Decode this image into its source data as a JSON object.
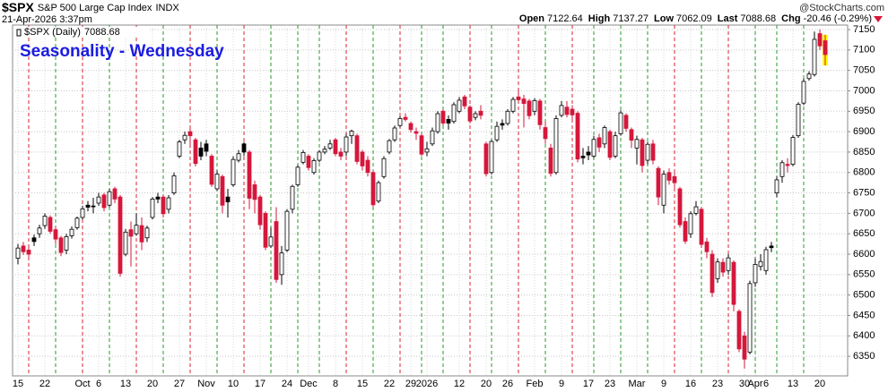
{
  "header": {
    "symbol": "$SPX",
    "name": "S&P 500 Large Cap Index",
    "exchange": "INDX",
    "timestamp": "21-Apr-2026 3:37pm",
    "source": "@StockCharts.com",
    "quote": [
      {
        "label": "Open",
        "value": 7122.64
      },
      {
        "label": "High",
        "value": 7137.27
      },
      {
        "label": "Low",
        "value": 7062.09
      },
      {
        "label": "Last",
        "value": 7088.68
      }
    ],
    "change_label": "Chg",
    "change": "-20.46 (-0.29%)"
  },
  "chart_data": {
    "type": "candlestick",
    "title": "Seasonality - Wednesday",
    "legend": "$SPX (Daily)",
    "legend_value": 7088.68,
    "categories": [
      "15",
      null,
      null,
      null,
      null,
      "22",
      null,
      null,
      null,
      null,
      null,
      null,
      "Oct",
      null,
      null,
      "6",
      null,
      null,
      null,
      null,
      "13",
      null,
      null,
      null,
      null,
      "20",
      null,
      null,
      null,
      null,
      "27",
      null,
      null,
      null,
      null,
      "Nov",
      null,
      null,
      null,
      null,
      "10",
      null,
      null,
      null,
      null,
      "17",
      null,
      null,
      null,
      null,
      "24",
      null,
      null,
      null,
      "Dec",
      null,
      null,
      null,
      null,
      "8",
      null,
      null,
      null,
      null,
      "15",
      null,
      null,
      null,
      null,
      "22",
      null,
      null,
      null,
      "29",
      null,
      null,
      "2026",
      null,
      null,
      null,
      null,
      null,
      "12",
      null,
      null,
      null,
      null,
      "20",
      null,
      null,
      null,
      "26",
      null,
      null,
      null,
      null,
      "Feb",
      null,
      null,
      null,
      null,
      "9",
      null,
      null,
      null,
      null,
      "17",
      null,
      null,
      null,
      "23",
      null,
      null,
      null,
      null,
      "Mar",
      null,
      null,
      null,
      null,
      "9",
      null,
      null,
      null,
      null,
      "16",
      null,
      null,
      null,
      null,
      "23",
      null,
      null,
      null,
      null,
      "30",
      null,
      "Apr",
      null,
      "6",
      null,
      null,
      null,
      null,
      "13",
      null,
      null,
      null,
      null,
      "20",
      null
    ],
    "open": [
      6590,
      6620,
      6610,
      6640,
      6650,
      6670,
      6690,
      6660,
      6640,
      6610,
      6645,
      6665,
      6690,
      6720,
      6718,
      6725,
      6745,
      6720,
      6760,
      6740,
      6600,
      6660,
      6650,
      6670,
      6640,
      6690,
      6740,
      6740,
      6710,
      6750,
      6840,
      6880,
      6900,
      6880,
      6860,
      6870,
      6840,
      6760,
      6790,
      6740,
      6770,
      6830,
      6870,
      6850,
      6770,
      6740,
      6700,
      6620,
      6680,
      6550,
      6610,
      6710,
      6770,
      6825,
      6840,
      6800,
      6830,
      6850,
      6860,
      6880,
      6850,
      6850,
      6890,
      6890,
      6850,
      6830,
      6800,
      6730,
      6790,
      6850,
      6880,
      6915,
      6935,
      6920,
      6900,
      6890,
      6850,
      6870,
      6900,
      6950,
      6930,
      6925,
      6950,
      6985,
      6960,
      6935,
      6950,
      6870,
      6800,
      6880,
      6920,
      6920,
      6950,
      6985,
      6980,
      6975,
      6950,
      6975,
      6910,
      6860,
      6800,
      6940,
      6960,
      6955,
      6945,
      6840,
      6850,
      6840,
      6885,
      6870,
      6900,
      6840,
      6895,
      6940,
      6905,
      6860,
      6880,
      6830,
      6870,
      6810,
      6720,
      6800,
      6790,
      6760,
      6680,
      6650,
      6700,
      6710,
      6630,
      6600,
      6540,
      6580,
      6560,
      6580,
      6460,
      6400,
      6360,
      6530,
      6570,
      6560,
      6620,
      6750,
      6790,
      6820,
      6820,
      6890,
      6970,
      7030,
      7040,
      7140,
      7122.64
    ],
    "high": [
      6625,
      6630,
      6622,
      6648,
      6672,
      6700,
      6695,
      6668,
      6645,
      6650,
      6668,
      6692,
      6718,
      6730,
      6738,
      6750,
      6750,
      6760,
      6765,
      6745,
      6662,
      6680,
      6700,
      6690,
      6670,
      6740,
      6750,
      6745,
      6745,
      6800,
      6880,
      6900,
      6910,
      6885,
      6875,
      6880,
      6845,
      6805,
      6795,
      6760,
      6840,
      6855,
      6875,
      6855,
      6780,
      6745,
      6705,
      6665,
      6715,
      6620,
      6710,
      6770,
      6818,
      6855,
      6845,
      6835,
      6855,
      6865,
      6880,
      6885,
      6860,
      6895,
      6905,
      6895,
      6855,
      6840,
      6805,
      6780,
      6840,
      6882,
      6915,
      6938,
      6945,
      6925,
      6910,
      6895,
      6875,
      6910,
      6950,
      6955,
      6940,
      6972,
      6985,
      6990,
      6965,
      6950,
      6965,
      6875,
      6880,
      6925,
      6930,
      6955,
      6985,
      7005,
      6990,
      6980,
      6982,
      6980,
      6925,
      6870,
      6940,
      6975,
      6975,
      6965,
      6950,
      6860,
      6865,
      6890,
      6895,
      6915,
      6905,
      6900,
      6952,
      6945,
      6910,
      6890,
      6885,
      6875,
      6880,
      6815,
      6805,
      6810,
      6800,
      6765,
      6690,
      6705,
      6730,
      6715,
      6640,
      6610,
      6590,
      6590,
      6600,
      6585,
      6465,
      6410,
      6535,
      6590,
      6600,
      6618,
      6630,
      6790,
      6830,
      6835,
      6892,
      6972,
      7030,
      7048,
      7145,
      7150,
      7137.27
    ],
    "low": [
      6575,
      6598,
      6590,
      6620,
      6640,
      6662,
      6650,
      6625,
      6595,
      6600,
      6638,
      6660,
      6685,
      6705,
      6700,
      6718,
      6705,
      6715,
      6725,
      6545,
      6595,
      6570,
      6645,
      6610,
      6630,
      6685,
      6725,
      6690,
      6700,
      6745,
      6835,
      6870,
      6860,
      6815,
      6830,
      6840,
      6765,
      6755,
      6700,
      6690,
      6765,
      6825,
      6840,
      6710,
      6700,
      6660,
      6610,
      6615,
      6530,
      6525,
      6605,
      6700,
      6765,
      6820,
      6805,
      6795,
      6825,
      6845,
      6855,
      6840,
      6830,
      6840,
      6870,
      6820,
      6805,
      6790,
      6715,
      6725,
      6785,
      6845,
      6875,
      6910,
      6925,
      6898,
      6880,
      6840,
      6840,
      6865,
      6895,
      6915,
      6905,
      6920,
      6945,
      6955,
      6920,
      6928,
      6930,
      6790,
      6795,
      6875,
      6905,
      6915,
      6945,
      6970,
      6910,
      6930,
      6940,
      6905,
      6870,
      6790,
      6795,
      6935,
      6935,
      6930,
      6825,
      6820,
      6830,
      6835,
      6850,
      6860,
      6830,
      6835,
      6890,
      6900,
      6860,
      6820,
      6800,
      6820,
      6820,
      6720,
      6700,
      6770,
      6760,
      6665,
      6625,
      6640,
      6695,
      6615,
      6590,
      6495,
      6530,
      6545,
      6550,
      6460,
      6360,
      6320,
      6355,
      6520,
      6560,
      6550,
      6605,
      6740,
      6775,
      6800,
      6815,
      6885,
      6965,
      7025,
      7035,
      7100,
      7062.09
    ],
    "close": [
      6615,
      6606,
      6600,
      6631,
      6664,
      6693,
      6656,
      6637,
      6604,
      6643,
      6661,
      6688,
      6711,
      6715,
      6716,
      6740,
      6714,
      6753,
      6735,
      6553,
      6654,
      6644,
      6671,
      6630,
      6664,
      6735,
      6735,
      6699,
      6738,
      6792,
      6875,
      6891,
      6890,
      6822,
      6840,
      6852,
      6771,
      6796,
      6720,
      6728,
      6832,
      6846,
      6850,
      6737,
      6734,
      6672,
      6617,
      6642,
      6538,
      6603,
      6705,
      6766,
      6813,
      6849,
      6812,
      6829,
      6850,
      6857,
      6870,
      6846,
      6840,
      6887,
      6901,
      6827,
      6816,
      6800,
      6721,
      6775,
      6834,
      6878,
      6909,
      6932,
      6930,
      6905,
      6896,
      6845,
      6858,
      6902,
      6944,
      6921,
      6921,
      6966,
      6977,
      6963,
      6926,
      6944,
      6940,
      6797,
      6876,
      6913,
      6916,
      6950,
      6979,
      6978,
      6969,
      6939,
      6976,
      6917,
      6883,
      6798,
      6932,
      6964,
      6942,
      6941,
      6833,
      6836,
      6843,
      6881,
      6862,
      6910,
      6837,
      6890,
      6946,
      6908,
      6879,
      6881,
      6817,
      6869,
      6830,
      6740,
      6796,
      6781,
      6775,
      6672,
      6632,
      6699,
      6716,
      6624,
      6606,
      6506,
      6581,
      6556,
      6591,
      6477,
      6368,
      6343,
      6528,
      6575,
      6582,
      6611,
      6616,
      6782,
      6824,
      6817,
      6886,
      6967,
      7023,
      7041,
      7126,
      7110,
      7088.68
    ],
    "vline_colors": [
      null,
      null,
      "#d8262f",
      null,
      null,
      null,
      null,
      "#2a9a2a",
      null,
      null,
      null,
      null,
      "#d8262f",
      null,
      null,
      null,
      null,
      "#2a9a2a",
      null,
      null,
      null,
      null,
      "#d8262f",
      null,
      null,
      null,
      null,
      "#2a9a2a",
      null,
      null,
      null,
      null,
      "#d8262f",
      null,
      null,
      null,
      null,
      "#2a9a2a",
      null,
      null,
      null,
      null,
      "#d8262f",
      null,
      null,
      null,
      null,
      "#2a9a2a",
      null,
      null,
      null,
      null,
      "#2a9a2a",
      null,
      null,
      null,
      "#2a9a2a",
      null,
      null,
      null,
      null,
      "#d8262f",
      null,
      null,
      null,
      null,
      "#2a9a2a",
      null,
      null,
      null,
      null,
      "#d8262f",
      null,
      null,
      null,
      "#2a9a2a",
      null,
      null,
      null,
      "#2a9a2a",
      null,
      null,
      null,
      null,
      "#d8262f",
      null,
      null,
      null,
      "#2a9a2a",
      null,
      null,
      null,
      null,
      "#d8262f",
      null,
      null,
      null,
      null,
      "#2a9a2a",
      null,
      null,
      null,
      null,
      "#d8262f",
      null,
      null,
      null,
      "#2a9a2a",
      null,
      null,
      null,
      null,
      "#2a9a2a",
      null,
      null,
      null,
      null,
      "#2a9a2a",
      null,
      null,
      null,
      null,
      "#d8262f",
      null,
      null,
      null,
      null,
      "#2a9a2a",
      null,
      null,
      null,
      null,
      "#d8262f",
      null,
      null,
      null,
      null,
      "#2a9a2a",
      null,
      null,
      null,
      "#2a9a2a",
      null,
      null,
      null,
      null,
      "#2a9a2a",
      null,
      null,
      null,
      null
    ],
    "up_color": "#000000",
    "down_color": "#d5173b",
    "hollow_color": "#ffffff",
    "highlight_color": "#ffff00",
    "title_color": "#1c1ce0",
    "ylim": [
      6302,
      7161
    ],
    "yticks": [
      6350,
      6400,
      6450,
      6500,
      6550,
      6600,
      6650,
      6700,
      6750,
      6800,
      6850,
      6900,
      6950,
      7000,
      7050,
      7100,
      7150
    ],
    "grid": true
  }
}
